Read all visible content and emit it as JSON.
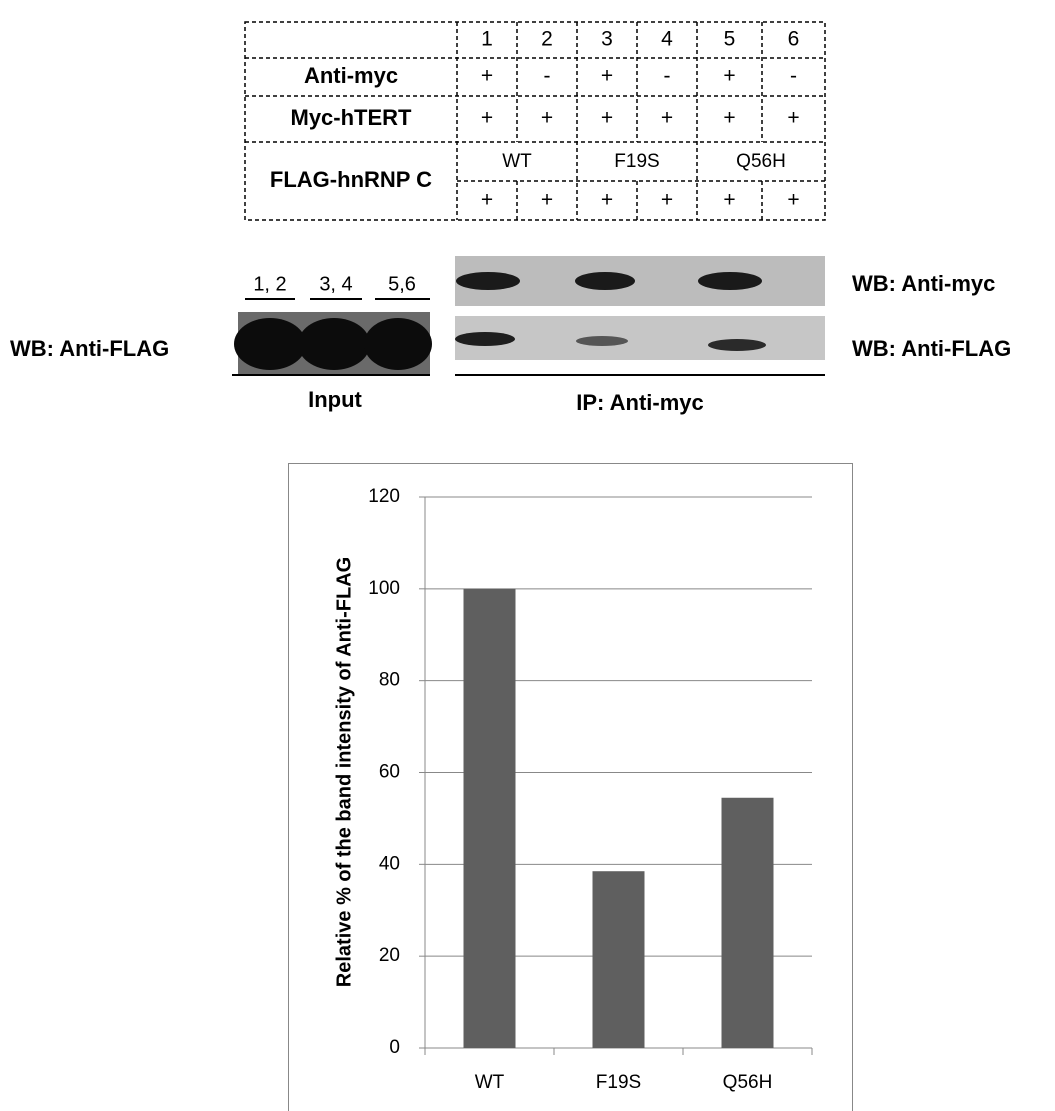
{
  "table": {
    "lanes": [
      "1",
      "2",
      "3",
      "4",
      "5",
      "6"
    ],
    "rows": [
      {
        "label": "Anti-myc",
        "cells": [
          "+",
          "-",
          "+",
          "-",
          "+",
          "-"
        ]
      },
      {
        "label": "Myc-hTERT",
        "cells": [
          "+",
          "+",
          "+",
          "+",
          "+",
          "+"
        ]
      }
    ],
    "flag": {
      "label": "FLAG-hnRNP C",
      "groups": [
        "WT",
        "F19S",
        "Q56H"
      ],
      "cells": [
        "+",
        "+",
        "+",
        "+",
        "+",
        "+"
      ]
    }
  },
  "blot": {
    "input_lanes": [
      "1, 2",
      "3, 4",
      "5,6"
    ],
    "left_label": "WB: Anti-FLAG",
    "right_labels": [
      "WB: Anti-myc",
      "WB: Anti-FLAG"
    ],
    "input_label": "Input",
    "ip_label": "IP: Anti-myc"
  },
  "chart_data": {
    "type": "bar",
    "y_label": "Relative % of the band intensity of Anti-FLAG",
    "categories": [
      "WT",
      "F19S",
      "Q56H"
    ],
    "values": [
      100,
      38.5,
      54.5
    ],
    "color": "#5f5f5f",
    "ylim": [
      0,
      120
    ],
    "yticks": [
      0,
      20,
      40,
      60,
      80,
      100,
      120
    ],
    "grid": true
  }
}
